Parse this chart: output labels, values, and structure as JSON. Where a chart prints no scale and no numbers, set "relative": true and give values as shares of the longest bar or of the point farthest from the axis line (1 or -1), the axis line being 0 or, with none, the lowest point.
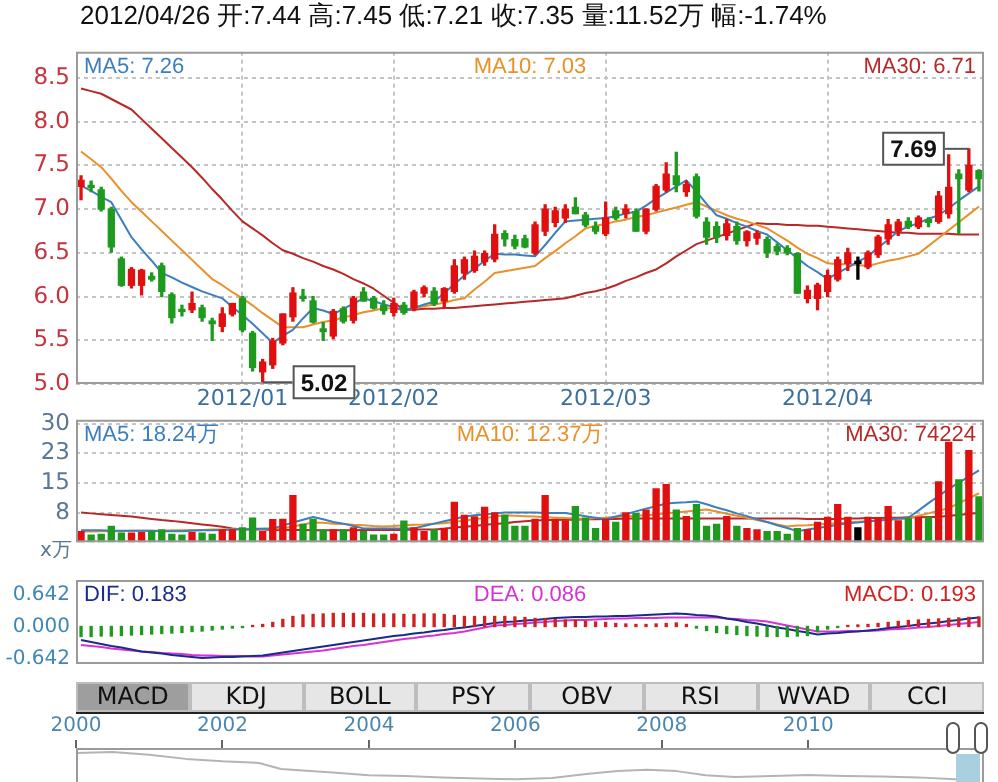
{
  "chart_data": [
    {
      "type": "candlestick",
      "title": "2012/04/26 开:7.44 高:7.45 低:7.21 收:7.35 量:11.52万 幅:-1.74%",
      "categories": [
        null,
        null,
        null,
        null,
        null,
        null,
        null,
        null,
        null,
        null,
        null,
        null,
        null,
        null,
        null,
        null,
        "2012/01",
        null,
        null,
        null,
        null,
        null,
        null,
        null,
        null,
        null,
        null,
        null,
        null,
        null,
        null,
        "2012/02",
        null,
        null,
        null,
        null,
        null,
        null,
        null,
        null,
        null,
        null,
        null,
        null,
        null,
        null,
        null,
        null,
        null,
        null,
        null,
        null,
        "2012/03",
        null,
        null,
        null,
        null,
        null,
        null,
        null,
        null,
        null,
        null,
        null,
        null,
        null,
        null,
        null,
        null,
        null,
        null,
        null,
        null,
        null,
        "2012/04",
        null,
        null,
        null,
        null,
        null,
        null,
        null,
        null,
        null,
        null,
        null,
        null,
        null,
        null,
        null
      ],
      "ohlc": [
        [
          7.26,
          7.38,
          7.11,
          7.33
        ],
        [
          7.27,
          7.32,
          7.2,
          7.25
        ],
        [
          7.22,
          7.25,
          6.98,
          7.0
        ],
        [
          7.0,
          7.02,
          6.51,
          6.57
        ],
        [
          6.43,
          6.45,
          6.12,
          6.13
        ],
        [
          6.13,
          6.33,
          6.1,
          6.31
        ],
        [
          6.13,
          6.31,
          6.02,
          6.3
        ],
        [
          6.23,
          6.27,
          6.18,
          6.2
        ],
        [
          6.35,
          6.38,
          6.0,
          6.06
        ],
        [
          6.02,
          6.04,
          5.7,
          5.76
        ],
        [
          5.85,
          5.9,
          5.78,
          5.83
        ],
        [
          5.85,
          6.05,
          5.82,
          5.92
        ],
        [
          5.87,
          5.9,
          5.72,
          5.76
        ],
        [
          5.72,
          5.75,
          5.5,
          5.69
        ],
        [
          5.66,
          5.87,
          5.6,
          5.8
        ],
        [
          5.8,
          5.92,
          5.78,
          5.92
        ],
        [
          5.98,
          6.0,
          5.6,
          5.62
        ],
        [
          5.58,
          5.6,
          5.15,
          5.19
        ],
        [
          5.14,
          5.28,
          5.02,
          5.25
        ],
        [
          5.22,
          5.52,
          5.18,
          5.49
        ],
        [
          5.47,
          5.8,
          5.45,
          5.8
        ],
        [
          5.77,
          6.1,
          5.72,
          6.04
        ],
        [
          6.0,
          6.08,
          5.95,
          5.98
        ],
        [
          5.95,
          6.0,
          5.7,
          5.71
        ],
        [
          5.63,
          5.7,
          5.5,
          5.6
        ],
        [
          5.55,
          5.85,
          5.52,
          5.83
        ],
        [
          5.86,
          5.88,
          5.7,
          5.72
        ],
        [
          5.73,
          6.0,
          5.7,
          5.98
        ],
        [
          6.05,
          6.1,
          5.95,
          5.95
        ],
        [
          5.98,
          6.0,
          5.86,
          5.87
        ],
        [
          5.9,
          5.95,
          5.8,
          5.84
        ],
        [
          5.82,
          5.98,
          5.78,
          5.92
        ],
        [
          5.9,
          5.93,
          5.8,
          5.82
        ],
        [
          5.87,
          6.07,
          5.84,
          6.05
        ],
        [
          6.04,
          6.12,
          6.0,
          6.1
        ],
        [
          6.06,
          6.1,
          5.9,
          5.92
        ],
        [
          5.95,
          6.1,
          5.88,
          6.09
        ],
        [
          6.06,
          6.42,
          6.04,
          6.35
        ],
        [
          6.27,
          6.45,
          6.2,
          6.42
        ],
        [
          6.3,
          6.52,
          6.28,
          6.46
        ],
        [
          6.4,
          6.52,
          6.36,
          6.49
        ],
        [
          6.43,
          6.82,
          6.4,
          6.71
        ],
        [
          6.72,
          6.75,
          6.58,
          6.66
        ],
        [
          6.65,
          6.7,
          6.55,
          6.58
        ],
        [
          6.66,
          6.7,
          6.56,
          6.57
        ],
        [
          6.5,
          6.85,
          6.48,
          6.82
        ],
        [
          6.75,
          7.05,
          6.7,
          7.0
        ],
        [
          6.85,
          7.02,
          6.8,
          6.98
        ],
        [
          6.9,
          7.05,
          6.85,
          7.0
        ],
        [
          7.02,
          7.13,
          6.95,
          6.95
        ],
        [
          6.93,
          6.96,
          6.8,
          6.82
        ],
        [
          6.8,
          6.85,
          6.72,
          6.75
        ],
        [
          6.72,
          7.08,
          6.7,
          6.9
        ],
        [
          6.98,
          7.02,
          6.88,
          6.9
        ],
        [
          6.95,
          7.05,
          6.9,
          7.0
        ],
        [
          6.97,
          7.0,
          6.75,
          6.75
        ],
        [
          6.75,
          7.0,
          6.72,
          7.0
        ],
        [
          7.0,
          7.28,
          6.98,
          7.26
        ],
        [
          7.22,
          7.53,
          7.2,
          7.4
        ],
        [
          7.38,
          7.65,
          7.2,
          7.28
        ],
        [
          7.2,
          7.32,
          7.15,
          7.28
        ],
        [
          7.37,
          7.4,
          6.9,
          6.92
        ],
        [
          6.85,
          6.9,
          6.6,
          6.68
        ],
        [
          6.8,
          6.85,
          6.62,
          6.68
        ],
        [
          6.7,
          6.88,
          6.65,
          6.83
        ],
        [
          6.8,
          6.85,
          6.6,
          6.64
        ],
        [
          6.64,
          6.75,
          6.58,
          6.74
        ],
        [
          6.67,
          6.75,
          6.6,
          6.72
        ],
        [
          6.65,
          6.68,
          6.45,
          6.5
        ],
        [
          6.57,
          6.6,
          6.48,
          6.52
        ],
        [
          6.55,
          6.58,
          6.48,
          6.5
        ],
        [
          6.49,
          6.5,
          6.04,
          6.04
        ],
        [
          5.98,
          6.12,
          5.93,
          6.07
        ],
        [
          5.98,
          6.15,
          5.85,
          6.13
        ],
        [
          6.06,
          6.3,
          6.0,
          6.24
        ],
        [
          6.2,
          6.45,
          6.18,
          6.42
        ],
        [
          6.38,
          6.55,
          6.3,
          6.5
        ],
        [
          6.38,
          6.45,
          6.2,
          6.38
        ],
        [
          6.34,
          6.52,
          6.32,
          6.5
        ],
        [
          6.48,
          6.7,
          6.45,
          6.68
        ],
        [
          6.66,
          6.88,
          6.6,
          6.82
        ],
        [
          6.75,
          6.88,
          6.7,
          6.85
        ],
        [
          6.86,
          6.9,
          6.78,
          6.8
        ],
        [
          6.8,
          6.92,
          6.78,
          6.9
        ],
        [
          6.88,
          6.9,
          6.8,
          6.85
        ],
        [
          6.86,
          7.2,
          6.84,
          7.15
        ],
        [
          6.95,
          7.62,
          6.9,
          7.25
        ],
        [
          7.4,
          7.45,
          6.72,
          7.35
        ],
        [
          7.22,
          7.69,
          7.2,
          7.5
        ],
        [
          7.44,
          7.45,
          7.21,
          7.35
        ]
      ],
      "colors": [
        "#e01010",
        "#1e9a1e",
        "#1e9a1e",
        "#1e9a1e",
        "#1e9a1e",
        "#e01010",
        "#e01010",
        "#1e9a1e",
        "#1e9a1e",
        "#1e9a1e",
        "#1e9a1e",
        "#e01010",
        "#1e9a1e",
        "#1e9a1e",
        "#e01010",
        "#e01010",
        "#1e9a1e",
        "#1e9a1e",
        "#e01010",
        "#e01010",
        "#e01010",
        "#e01010",
        "#1e9a1e",
        "#1e9a1e",
        "#1e9a1e",
        "#e01010",
        "#1e9a1e",
        "#e01010",
        "#1e9a1e",
        "#1e9a1e",
        "#1e9a1e",
        "#e01010",
        "#1e9a1e",
        "#e01010",
        "#e01010",
        "#1e9a1e",
        "#e01010",
        "#e01010",
        "#e01010",
        "#e01010",
        "#e01010",
        "#e01010",
        "#1e9a1e",
        "#1e9a1e",
        "#1e9a1e",
        "#e01010",
        "#e01010",
        "#e01010",
        "#e01010",
        "#1e9a1e",
        "#1e9a1e",
        "#1e9a1e",
        "#e01010",
        "#1e9a1e",
        "#e01010",
        "#1e9a1e",
        "#e01010",
        "#e01010",
        "#e01010",
        "#1e9a1e",
        "#e01010",
        "#1e9a1e",
        "#1e9a1e",
        "#1e9a1e",
        "#e01010",
        "#1e9a1e",
        "#e01010",
        "#e01010",
        "#1e9a1e",
        "#1e9a1e",
        "#1e9a1e",
        "#1e9a1e",
        "#e01010",
        "#e01010",
        "#e01010",
        "#e01010",
        "#e01010",
        "#000000",
        "#e01010",
        "#e01010",
        "#e01010",
        "#e01010",
        "#1e9a1e",
        "#e01010",
        "#1e9a1e",
        "#e01010",
        "#e01010",
        "#1e9a1e",
        "#e01010",
        "#1e9a1e"
      ],
      "series": [
        {
          "name": "MA5: 7.26",
          "type": "line",
          "color": "#3c7fbf",
          "values": [
            7.27,
            7.21,
            7.14,
            7.08,
            6.88,
            6.68,
            6.54,
            6.41,
            6.27,
            6.22,
            6.16,
            6.11,
            6.06,
            6.02,
            5.98,
            5.88,
            5.79,
            5.69,
            5.58,
            5.47,
            5.55,
            5.62,
            5.75,
            5.87,
            5.84,
            5.8,
            5.86,
            5.92,
            5.98,
            5.95,
            5.91,
            5.88,
            5.84,
            5.87,
            5.91,
            5.94,
            6.04,
            6.14,
            6.24,
            6.32,
            6.41,
            6.49,
            6.48,
            6.48,
            6.47,
            6.46,
            6.59,
            6.73,
            6.86,
            6.87,
            6.88,
            6.89,
            6.9,
            6.92,
            6.95,
            6.97,
            7.04,
            7.12,
            7.19,
            7.26,
            7.33,
            7.2,
            7.06,
            6.93,
            6.89,
            6.84,
            6.8,
            6.75,
            6.71,
            6.62,
            6.53,
            6.44,
            6.35,
            6.28,
            6.2,
            6.27,
            6.33,
            6.4,
            6.46,
            6.56,
            6.65,
            6.75,
            6.8,
            6.84,
            6.89,
            6.93,
            7.01,
            7.1,
            7.18,
            7.26
          ]
        },
        {
          "name": "MA10: 7.03",
          "type": "line",
          "color": "#e8902a",
          "values": [
            7.66,
            7.57,
            7.48,
            7.35,
            7.21,
            7.08,
            6.97,
            6.86,
            6.75,
            6.64,
            6.53,
            6.42,
            6.31,
            6.2,
            6.13,
            6.05,
            5.98,
            5.9,
            5.81,
            5.73,
            5.65,
            5.65,
            5.65,
            5.68,
            5.71,
            5.73,
            5.76,
            5.79,
            5.82,
            5.84,
            5.87,
            5.86,
            5.85,
            5.87,
            5.89,
            5.91,
            5.93,
            5.96,
            5.98,
            6.08,
            6.17,
            6.27,
            6.29,
            6.31,
            6.33,
            6.35,
            6.44,
            6.52,
            6.61,
            6.69,
            6.78,
            6.81,
            6.83,
            6.86,
            6.88,
            6.91,
            6.93,
            6.96,
            6.99,
            7.02,
            7.05,
            7.08,
            7.03,
            6.98,
            6.93,
            6.89,
            6.86,
            6.82,
            6.78,
            6.71,
            6.64,
            6.56,
            6.49,
            6.44,
            6.38,
            6.37,
            6.37,
            6.36,
            6.35,
            6.38,
            6.41,
            6.43,
            6.46,
            6.49,
            6.58,
            6.67,
            6.76,
            6.85,
            6.94,
            7.03
          ]
        },
        {
          "name": "MA30: 6.71",
          "type": "line",
          "color": "#b82828",
          "values": [
            8.38,
            8.35,
            8.32,
            8.26,
            8.2,
            8.14,
            8.03,
            7.92,
            7.81,
            7.7,
            7.59,
            7.48,
            7.36,
            7.23,
            7.11,
            6.98,
            6.86,
            6.78,
            6.7,
            6.61,
            6.53,
            6.49,
            6.44,
            6.4,
            6.35,
            6.31,
            6.26,
            6.2,
            6.15,
            6.09,
            6.01,
            5.93,
            5.85,
            5.85,
            5.86,
            5.86,
            5.87,
            5.87,
            5.88,
            5.89,
            5.9,
            5.91,
            5.92,
            5.93,
            5.94,
            5.95,
            5.96,
            5.97,
            5.98,
            6.01,
            6.04,
            6.06,
            6.09,
            6.13,
            6.18,
            6.22,
            6.27,
            6.31,
            6.38,
            6.46,
            6.53,
            6.6,
            6.64,
            6.68,
            6.72,
            6.76,
            6.8,
            6.84,
            6.83,
            6.83,
            6.82,
            6.82,
            6.81,
            6.81,
            6.8,
            6.79,
            6.78,
            6.77,
            6.76,
            6.75,
            6.74,
            6.73,
            6.73,
            6.72,
            6.72,
            6.72,
            6.72,
            6.71,
            6.71,
            6.71
          ]
        }
      ],
      "ylim": [
        5.0,
        8.8
      ],
      "yticks": [
        {
          "value": 5,
          "label": "5.0"
        },
        5.5,
        {
          "value": 6,
          "label": "6.0"
        },
        6.5,
        {
          "value": 7,
          "label": "7.0"
        },
        7.5,
        {
          "value": 8,
          "label": "8.0"
        },
        8.5
      ],
      "grid": true,
      "annotations": [
        {
          "text": "5.02",
          "y": 5.02
        },
        {
          "text": "7.69",
          "y": 7.69
        }
      ]
    },
    {
      "type": "bar",
      "ylabel": "x万",
      "categories": [
        null,
        null,
        null,
        null,
        null,
        null,
        null,
        null,
        null,
        null,
        null,
        null,
        null,
        null,
        null,
        null,
        "2012/01",
        null,
        null,
        null,
        null,
        null,
        null,
        null,
        null,
        null,
        null,
        null,
        null,
        null,
        null,
        "2012/02",
        null,
        null,
        null,
        null,
        null,
        null,
        null,
        null,
        null,
        null,
        null,
        null,
        null,
        null,
        null,
        null,
        null,
        null,
        null,
        null,
        "2012/03",
        null,
        null,
        null,
        null,
        null,
        null,
        null,
        null,
        null,
        null,
        null,
        null,
        null,
        null,
        null,
        null,
        null,
        null,
        null,
        null,
        null,
        "2012/04",
        null,
        null,
        null,
        null,
        null,
        null,
        null,
        null,
        null,
        null,
        null,
        null,
        null,
        null,
        null
      ],
      "series": [
        {
          "type": "bar",
          "colors": [
            "#e01010",
            "#1e9a1e",
            "#1e9a1e",
            "#1e9a1e",
            "#1e9a1e",
            "#e01010",
            "#e01010",
            "#1e9a1e",
            "#1e9a1e",
            "#1e9a1e",
            "#1e9a1e",
            "#e01010",
            "#1e9a1e",
            "#1e9a1e",
            "#e01010",
            "#e01010",
            "#1e9a1e",
            "#1e9a1e",
            "#e01010",
            "#e01010",
            "#e01010",
            "#e01010",
            "#1e9a1e",
            "#1e9a1e",
            "#1e9a1e",
            "#e01010",
            "#1e9a1e",
            "#e01010",
            "#1e9a1e",
            "#1e9a1e",
            "#1e9a1e",
            "#e01010",
            "#1e9a1e",
            "#e01010",
            "#e01010",
            "#1e9a1e",
            "#e01010",
            "#e01010",
            "#e01010",
            "#e01010",
            "#e01010",
            "#e01010",
            "#1e9a1e",
            "#1e9a1e",
            "#1e9a1e",
            "#e01010",
            "#e01010",
            "#e01010",
            "#e01010",
            "#1e9a1e",
            "#1e9a1e",
            "#1e9a1e",
            "#e01010",
            "#1e9a1e",
            "#e01010",
            "#1e9a1e",
            "#e01010",
            "#e01010",
            "#e01010",
            "#1e9a1e",
            "#e01010",
            "#1e9a1e",
            "#1e9a1e",
            "#1e9a1e",
            "#e01010",
            "#1e9a1e",
            "#e01010",
            "#e01010",
            "#1e9a1e",
            "#1e9a1e",
            "#1e9a1e",
            "#1e9a1e",
            "#e01010",
            "#e01010",
            "#e01010",
            "#e01010",
            "#e01010",
            "#000000",
            "#e01010",
            "#e01010",
            "#e01010",
            "#e01010",
            "#1e9a1e",
            "#e01010",
            "#1e9a1e",
            "#e01010",
            "#e01010",
            "#1e9a1e",
            "#e01010",
            "#1e9a1e"
          ],
          "values": [
            2.7,
            1.8,
            2.0,
            4.0,
            2.3,
            2.3,
            2.4,
            2.7,
            3.1,
            2.0,
            1.8,
            2.4,
            2.3,
            2.0,
            3.1,
            3.1,
            3.6,
            6.1,
            2.7,
            5.7,
            5.8,
            11.8,
            4.5,
            5.8,
            3.1,
            3.1,
            3.1,
            3.6,
            2.7,
            1.8,
            1.8,
            2.0,
            5.3,
            3.6,
            2.7,
            3.1,
            3.5,
            10.1,
            6.8,
            6.4,
            8.8,
            7.4,
            6.8,
            4.0,
            4.0,
            5.8,
            11.8,
            5.8,
            5.4,
            9.0,
            6.1,
            3.4,
            5.8,
            5.0,
            7.4,
            7.2,
            8.1,
            13.5,
            14.6,
            8.1,
            6.5,
            9.5,
            4.0,
            4.5,
            6.5,
            4.0,
            3.4,
            3.1,
            2.7,
            2.7,
            2.0,
            3.4,
            3.1,
            5.0,
            6.3,
            9.5,
            6.3,
            3.6,
            6.3,
            6.1,
            9.0,
            5.4,
            6.0,
            6.3,
            6.3,
            15.3,
            25.3,
            15.8,
            23.2,
            11.5
          ]
        },
        {
          "name": "MA5: 18.24万",
          "type": "line",
          "color": "#3c7fbf",
          "values": [
            3.0,
            3.0,
            3.0,
            2.9,
            2.9,
            2.9,
            2.9,
            2.9,
            2.8,
            2.8,
            2.8,
            2.9,
            3.0,
            3.0,
            3.1,
            3.2,
            3.3,
            3.3,
            3.4,
            3.5,
            4.2,
            5.0,
            5.7,
            6.4,
            5.8,
            5.1,
            4.7,
            4.1,
            3.5,
            3.5,
            3.5,
            3.5,
            3.5,
            3.5,
            4.1,
            4.7,
            5.3,
            5.9,
            6.5,
            6.8,
            7.0,
            7.3,
            7.5,
            7.5,
            7.5,
            7.5,
            7.4,
            7.4,
            7.4,
            7.0,
            6.6,
            6.2,
            5.8,
            6.5,
            7.1,
            7.8,
            8.5,
            9.1,
            9.8,
            10.0,
            10.1,
            10.3,
            9.6,
            8.8,
            8.1,
            7.3,
            6.6,
            5.8,
            5.1,
            4.3,
            3.6,
            2.8,
            3.2,
            3.6,
            4.0,
            4.4,
            4.8,
            5.0,
            5.3,
            5.5,
            5.7,
            6.0,
            6.2,
            8.0,
            9.9,
            11.7,
            13.5,
            15.1,
            16.6,
            18.2
          ]
        },
        {
          "name": "MA10: 12.37万",
          "type": "line",
          "color": "#e8902a",
          "values": [
            2.7,
            2.7,
            2.8,
            2.8,
            2.8,
            2.9,
            2.9,
            2.9,
            2.9,
            3.0,
            3.0,
            3.1,
            3.1,
            3.2,
            3.2,
            3.3,
            3.3,
            3.4,
            3.4,
            3.5,
            3.5,
            4.0,
            4.5,
            5.0,
            4.9,
            4.7,
            4.6,
            4.4,
            4.3,
            4.1,
            4.0,
            4.1,
            4.3,
            4.4,
            4.5,
            4.7,
            4.8,
            5.1,
            5.5,
            5.8,
            6.1,
            6.5,
            6.8,
            6.7,
            6.6,
            6.5,
            6.3,
            6.2,
            6.1,
            6.0,
            5.9,
            6.1,
            6.2,
            6.4,
            6.5,
            6.7,
            6.8,
            7.0,
            7.3,
            7.5,
            7.8,
            8.0,
            8.3,
            7.8,
            7.2,
            6.7,
            6.2,
            5.6,
            5.1,
            4.5,
            4.0,
            4.2,
            4.3,
            4.5,
            4.7,
            4.8,
            5.0,
            5.2,
            5.3,
            5.5,
            5.7,
            5.8,
            6.0,
            6.7,
            7.3,
            8.0,
            8.6,
            9.9,
            11.1,
            12.4
          ]
        },
        {
          "name": "MA30: 74224",
          "type": "line",
          "color": "#b82828",
          "values": [
            7.5,
            7.3,
            7.1,
            6.9,
            6.7,
            6.5,
            6.2,
            5.9,
            5.6,
            5.4,
            5.1,
            4.8,
            4.5,
            4.2,
            3.9,
            3.5,
            3.2,
            3.2,
            3.2,
            3.1,
            3.1,
            3.1,
            3.1,
            3.0,
            3.0,
            3.0,
            3.0,
            3.0,
            3.1,
            3.1,
            3.1,
            3.1,
            3.1,
            3.2,
            3.2,
            3.2,
            3.4,
            3.7,
            3.9,
            4.1,
            4.4,
            4.6,
            4.8,
            5.1,
            5.3,
            5.5,
            5.6,
            5.6,
            5.7,
            5.7,
            5.8,
            5.8,
            5.9,
            5.9,
            6.0,
            6.0,
            6.0,
            6.0,
            6.0,
            6.0,
            6.0,
            6.0,
            6.0,
            6.0,
            6.0,
            6.0,
            6.0,
            6.0,
            6.0,
            6.0,
            6.0,
            6.0,
            5.9,
            5.9,
            5.9,
            5.9,
            6.0,
            6.0,
            6.1,
            6.1,
            6.2,
            6.2,
            6.3,
            6.3,
            6.4,
            6.4,
            6.7,
            6.9,
            7.2,
            7.4
          ]
        }
      ],
      "ylim": [
        0,
        31
      ],
      "yticks": [
        {
          "value": 7.5,
          "label": "8"
        },
        15,
        {
          "value": 22.5,
          "label": "23"
        },
        30
      ],
      "grid": true,
      "tick_labels": "y"
    },
    {
      "type": "bar",
      "categories": [
        null,
        null,
        null,
        null,
        null,
        null,
        null,
        null,
        null,
        null,
        null,
        null,
        null,
        null,
        null,
        null,
        "2012/01",
        null,
        null,
        null,
        null,
        null,
        null,
        null,
        null,
        null,
        null,
        null,
        null,
        null,
        null,
        "2012/02",
        null,
        null,
        null,
        null,
        null,
        null,
        null,
        null,
        null,
        null,
        null,
        null,
        null,
        null,
        null,
        null,
        null,
        null,
        null,
        null,
        "2012/03",
        null,
        null,
        null,
        null,
        null,
        null,
        null,
        null,
        null,
        null,
        null,
        null,
        null,
        null,
        null,
        null,
        null,
        null,
        null,
        null,
        null,
        "2012/04",
        null,
        null,
        null,
        null,
        null,
        null,
        null,
        null,
        null,
        null,
        null,
        null,
        null,
        null,
        null
      ],
      "series": [
        {
          "name": "DIF: 0.183",
          "type": "line",
          "color": "#1a2a8a",
          "values": [
            -0.27,
            -0.31,
            -0.35,
            -0.39,
            -0.42,
            -0.46,
            -0.5,
            -0.52,
            -0.54,
            -0.57,
            -0.59,
            -0.61,
            -0.63,
            -0.62,
            -0.61,
            -0.61,
            -0.6,
            -0.59,
            -0.58,
            -0.55,
            -0.52,
            -0.49,
            -0.46,
            -0.43,
            -0.4,
            -0.37,
            -0.34,
            -0.31,
            -0.28,
            -0.25,
            -0.22,
            -0.19,
            -0.17,
            -0.14,
            -0.12,
            -0.09,
            -0.07,
            -0.04,
            -0.02,
            0.01,
            0.04,
            0.07,
            0.09,
            0.1,
            0.12,
            0.13,
            0.15,
            0.17,
            0.18,
            0.19,
            0.19,
            0.2,
            0.2,
            0.21,
            0.21,
            0.22,
            0.23,
            0.24,
            0.25,
            0.26,
            0.25,
            0.23,
            0.22,
            0.2,
            0.16,
            0.13,
            0.09,
            0.06,
            0.02,
            -0.02,
            -0.05,
            -0.09,
            -0.12,
            -0.16,
            -0.14,
            -0.13,
            -0.11,
            -0.1,
            -0.08,
            -0.06,
            -0.03,
            -0.01,
            0.01,
            0.04,
            0.06,
            0.08,
            0.11,
            0.13,
            0.16,
            0.18
          ]
        },
        {
          "name": "DEA: 0.086",
          "type": "line",
          "color": "#d633d6",
          "values": [
            -0.37,
            -0.39,
            -0.41,
            -0.44,
            -0.46,
            -0.48,
            -0.5,
            -0.51,
            -0.53,
            -0.54,
            -0.55,
            -0.57,
            -0.58,
            -0.58,
            -0.59,
            -0.59,
            -0.59,
            -0.6,
            -0.6,
            -0.58,
            -0.56,
            -0.54,
            -0.52,
            -0.5,
            -0.48,
            -0.45,
            -0.42,
            -0.39,
            -0.37,
            -0.34,
            -0.31,
            -0.28,
            -0.25,
            -0.23,
            -0.2,
            -0.18,
            -0.15,
            -0.13,
            -0.1,
            -0.06,
            -0.02,
            0.02,
            0.03,
            0.05,
            0.06,
            0.08,
            0.09,
            0.11,
            0.12,
            0.13,
            0.13,
            0.14,
            0.15,
            0.16,
            0.16,
            0.17,
            0.17,
            0.17,
            0.18,
            0.18,
            0.18,
            0.18,
            0.18,
            0.18,
            0.16,
            0.15,
            0.13,
            0.12,
            0.1,
            0.06,
            0.02,
            -0.02,
            -0.06,
            -0.1,
            -0.1,
            -0.1,
            -0.09,
            -0.09,
            -0.09,
            -0.08,
            -0.06,
            -0.05,
            -0.04,
            -0.02,
            -0.01,
            0.01,
            0.03,
            0.05,
            0.07,
            0.09
          ]
        },
        {
          "name": "MACD: 0.193",
          "type": "bar",
          "color": "#d02020",
          "colors": [
            "#1e9a1e",
            "#1e9a1e",
            "#1e9a1e",
            "#1e9a1e",
            "#1e9a1e",
            "#1e9a1e",
            "#1e9a1e",
            "#1e9a1e",
            "#1e9a1e",
            "#1e9a1e",
            "#1e9a1e",
            "#1e9a1e",
            "#1e9a1e",
            "#1e9a1e",
            "#1e9a1e",
            "#1e9a1e",
            "#1e9a1e",
            "#d02020",
            "#d02020",
            "#d02020",
            "#d02020",
            "#d02020",
            "#d02020",
            "#d02020",
            "#d02020",
            "#d02020",
            "#d02020",
            "#d02020",
            "#d02020",
            "#d02020",
            "#d02020",
            "#d02020",
            "#d02020",
            "#d02020",
            "#d02020",
            "#d02020",
            "#d02020",
            "#d02020",
            "#d02020",
            "#d02020",
            "#d02020",
            "#d02020",
            "#d02020",
            "#d02020",
            "#d02020",
            "#d02020",
            "#d02020",
            "#d02020",
            "#d02020",
            "#d02020",
            "#d02020",
            "#d02020",
            "#d02020",
            "#d02020",
            "#d02020",
            "#d02020",
            "#d02020",
            "#d02020",
            "#d02020",
            "#d02020",
            "#d02020",
            "#1e9a1e",
            "#1e9a1e",
            "#1e9a1e",
            "#1e9a1e",
            "#1e9a1e",
            "#1e9a1e",
            "#1e9a1e",
            "#1e9a1e",
            "#1e9a1e",
            "#1e9a1e",
            "#1e9a1e",
            "#1e9a1e",
            "#1e9a1e",
            "#1e9a1e",
            "#1e9a1e",
            "#d02020",
            "#d02020",
            "#d02020",
            "#d02020",
            "#d02020",
            "#d02020",
            "#d02020",
            "#d02020",
            "#d02020",
            "#d02020",
            "#d02020",
            "#d02020",
            "#d02020",
            "#d02020"
          ],
          "values": [
            -0.2,
            -0.2,
            -0.19,
            -0.19,
            -0.18,
            -0.17,
            -0.16,
            -0.15,
            -0.14,
            -0.13,
            -0.12,
            -0.1,
            -0.09,
            -0.07,
            -0.05,
            -0.03,
            -0.02,
            0.02,
            0.04,
            0.08,
            0.14,
            0.2,
            0.23,
            0.24,
            0.25,
            0.26,
            0.26,
            0.26,
            0.26,
            0.25,
            0.25,
            0.25,
            0.24,
            0.24,
            0.25,
            0.25,
            0.24,
            0.22,
            0.2,
            0.2,
            0.2,
            0.2,
            0.2,
            0.19,
            0.18,
            0.16,
            0.16,
            0.14,
            0.13,
            0.12,
            0.1,
            0.09,
            0.08,
            0.06,
            0.05,
            0.04,
            0.04,
            0.05,
            0.06,
            0.07,
            0.04,
            -0.03,
            -0.08,
            -0.12,
            -0.14,
            -0.16,
            -0.18,
            -0.19,
            -0.2,
            -0.2,
            -0.2,
            -0.19,
            -0.18,
            -0.1,
            -0.05,
            -0.02,
            0.02,
            0.03,
            0.04,
            0.06,
            0.08,
            0.1,
            0.12,
            0.13,
            0.14,
            0.15,
            0.16,
            0.17,
            0.18,
            0.19
          ]
        }
      ],
      "ylim": [
        -0.75,
        0.93
      ],
      "yticks": [
        -0.642,
        {
          "value": 0,
          "label": "0.000"
        },
        0.642
      ],
      "tick_labels": "y"
    },
    {
      "type": "other",
      "annotations": [
        "MACD",
        "KDJ",
        "BOLL",
        "PSY",
        "OBV",
        "RSI",
        "WVAD",
        "CCI"
      ]
    },
    {
      "type": "line",
      "relative": true,
      "series": [
        {
          "color": "#b4b4b4",
          "x": [
            2000,
            2000.5,
            2001,
            2001.5,
            2002,
            2002.5,
            2002.8,
            2003.5,
            2004,
            2004.5,
            2005,
            2005.5,
            2006,
            2006.5,
            2007,
            2007.4,
            2007.8,
            2008.2,
            2008.6,
            2009,
            2009.5,
            2010,
            2010.5,
            2011,
            2011.5,
            2012,
            2012.3
          ],
          "values": [
            0.97,
            1,
            0.9,
            0.75,
            0.66,
            0.6,
            0.38,
            0.25,
            0.15,
            0.12,
            0.07,
            0.03,
            0,
            0.05,
            0.2,
            0.3,
            0.35,
            0.3,
            0.15,
            0.08,
            0.12,
            0.16,
            0.12,
            0.1,
            0.07,
            0,
            0.03
          ]
        }
      ],
      "xlim": [
        2000,
        2012.4
      ],
      "xticks": [
        2000,
        2002,
        2004,
        2006,
        2008,
        2010
      ]
    }
  ]
}
